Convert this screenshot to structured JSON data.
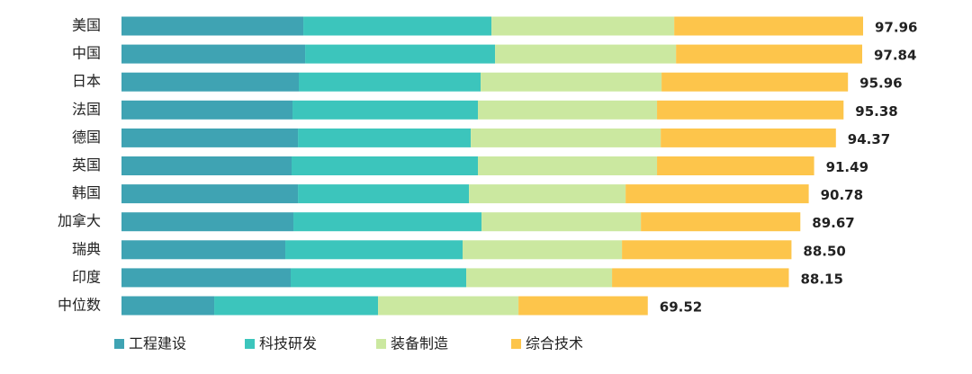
{
  "chart_data": {
    "type": "stacked-bar-horizontal",
    "categories": [
      "美国",
      "中国",
      "日本",
      "法国",
      "德国",
      "英国",
      "韩国",
      "加拿大",
      "瑞典",
      "印度",
      "中位数"
    ],
    "series": [
      {
        "name": "工程建设",
        "color": "#3fa3b3",
        "values": [
          24.02,
          24.26,
          23.42,
          22.59,
          23.31,
          22.47,
          23.31,
          22.71,
          21.64,
          22.35,
          12.25
        ]
      },
      {
        "name": "科技研发",
        "color": "#3cc5bc",
        "values": [
          24.85,
          25.09,
          24.02,
          24.49,
          22.83,
          24.61,
          22.59,
          24.85,
          23.42,
          23.19,
          21.64
        ]
      },
      {
        "name": "装备制造",
        "color": "#cbe8a0",
        "values": [
          24.14,
          23.9,
          23.9,
          23.66,
          25.09,
          23.66,
          20.69,
          21.05,
          21.05,
          19.26,
          18.55
        ]
      },
      {
        "name": "综合技术",
        "color": "#fdc54b",
        "values": [
          24.95,
          24.59,
          24.62,
          24.64,
          23.14,
          20.75,
          24.19,
          21.06,
          22.39,
          23.35,
          17.08
        ]
      }
    ],
    "totals": [
      97.96,
      97.84,
      95.96,
      95.38,
      94.37,
      91.49,
      90.78,
      89.67,
      88.5,
      88.15,
      69.52
    ],
    "total_labels": [
      "97.96",
      "97.84",
      "95.96",
      "95.38",
      "94.37",
      "91.49",
      "90.78",
      "89.67",
      "88.50",
      "88.15",
      "69.52"
    ],
    "legend": "bottom"
  }
}
